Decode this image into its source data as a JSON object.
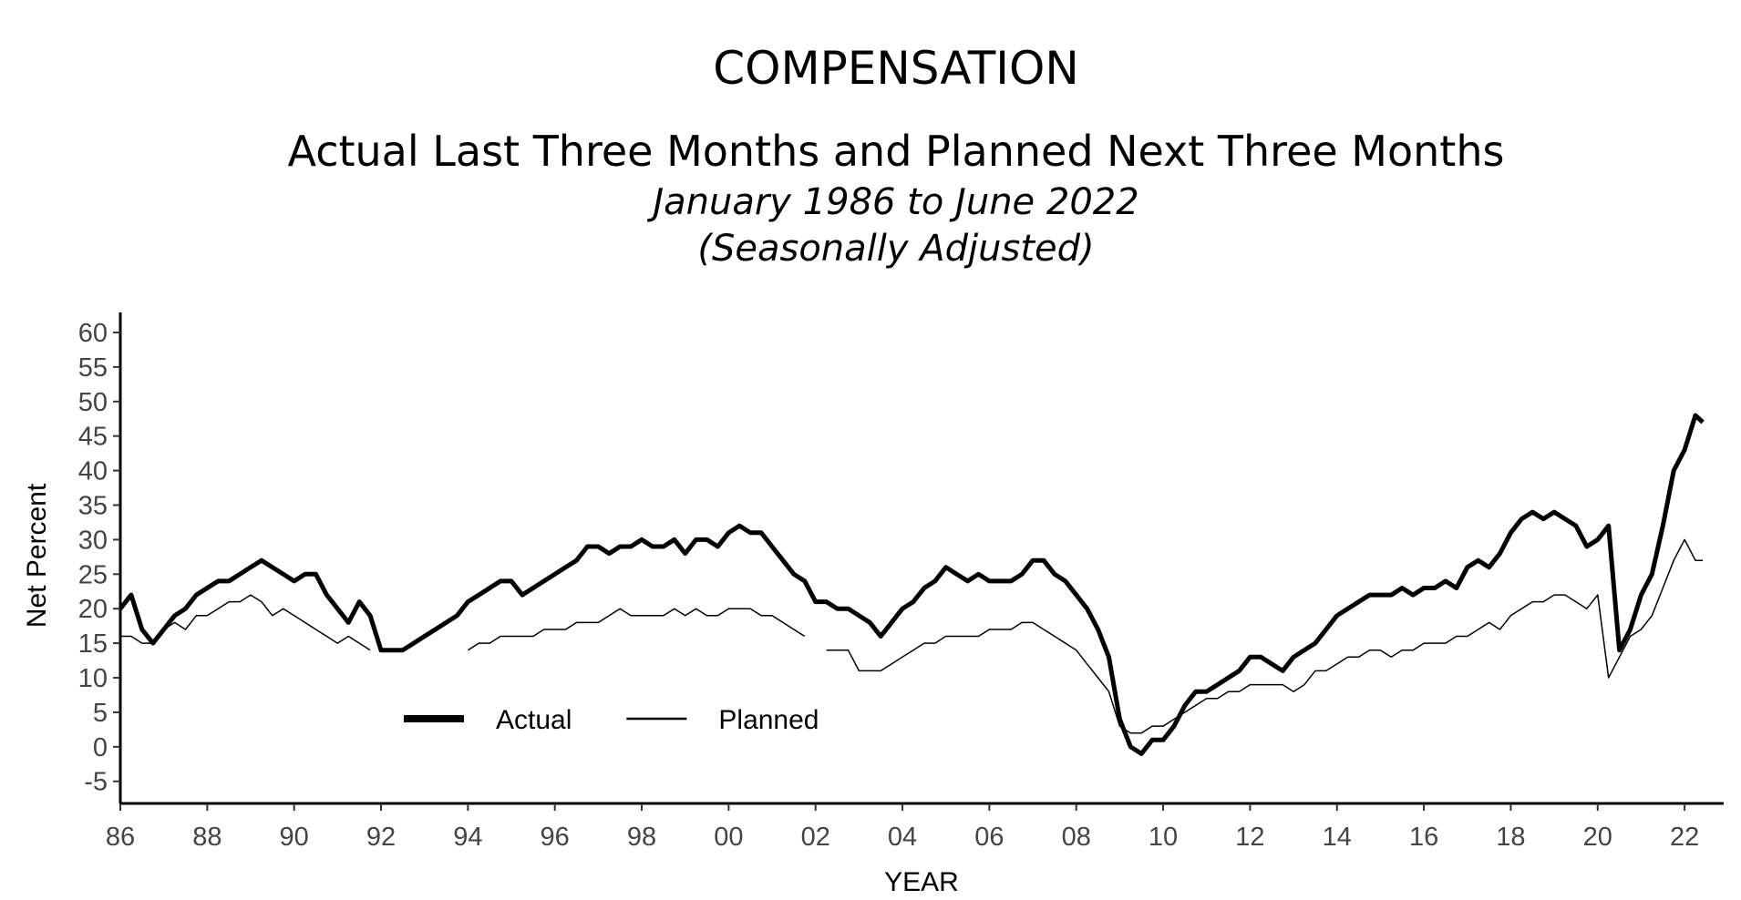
{
  "chart_data": {
    "type": "line",
    "title": "COMPENSATION",
    "subtitle": "Actual Last Three Months and Planned Next Three Months",
    "date_range": "January 1986 to June 2022",
    "note": "(Seasonally Adjusted)",
    "xlabel": "YEAR",
    "ylabel": "Net Percent",
    "legend_position": "lower left",
    "xlim": [
      1986,
      2022.9
    ],
    "ylim": [
      -8.2,
      62.9
    ],
    "yticks": [
      -5,
      0,
      5,
      10,
      15,
      20,
      25,
      30,
      35,
      40,
      45,
      50,
      55,
      60
    ],
    "xticks": [
      {
        "value": 1986,
        "label": "86"
      },
      {
        "value": 1988,
        "label": "88"
      },
      {
        "value": 1990,
        "label": "90"
      },
      {
        "value": 1992,
        "label": "92"
      },
      {
        "value": 1994,
        "label": "94"
      },
      {
        "value": 1996,
        "label": "96"
      },
      {
        "value": 1998,
        "label": "98"
      },
      {
        "value": 2000,
        "label": "00"
      },
      {
        "value": 2002,
        "label": "02"
      },
      {
        "value": 2004,
        "label": "04"
      },
      {
        "value": 2006,
        "label": "06"
      },
      {
        "value": 2008,
        "label": "08"
      },
      {
        "value": 2010,
        "label": "10"
      },
      {
        "value": 2012,
        "label": "12"
      },
      {
        "value": 2014,
        "label": "14"
      },
      {
        "value": 2016,
        "label": "16"
      },
      {
        "value": 2018,
        "label": "18"
      },
      {
        "value": 2020,
        "label": "20"
      },
      {
        "value": 2022,
        "label": "22"
      }
    ],
    "x": [
      1986,
      1986.25,
      1986.5,
      1986.75,
      1987,
      1987.25,
      1987.5,
      1987.75,
      1988,
      1988.25,
      1988.5,
      1988.75,
      1989,
      1989.25,
      1989.5,
      1989.75,
      1990,
      1990.25,
      1990.5,
      1990.75,
      1991,
      1991.25,
      1991.5,
      1991.75,
      1992,
      1992.25,
      1992.5,
      1992.75,
      1993,
      1993.25,
      1993.5,
      1993.75,
      1994,
      1994.25,
      1994.5,
      1994.75,
      1995,
      1995.25,
      1995.5,
      1995.75,
      1996,
      1996.25,
      1996.5,
      1996.75,
      1997,
      1997.25,
      1997.5,
      1997.75,
      1998,
      1998.25,
      1998.5,
      1998.75,
      1999,
      1999.25,
      1999.5,
      1999.75,
      2000,
      2000.25,
      2000.5,
      2000.75,
      2001,
      2001.25,
      2001.5,
      2001.75,
      2002,
      2002.25,
      2002.5,
      2002.75,
      2003,
      2003.25,
      2003.5,
      2003.75,
      2004,
      2004.25,
      2004.5,
      2004.75,
      2005,
      2005.25,
      2005.5,
      2005.75,
      2006,
      2006.25,
      2006.5,
      2006.75,
      2007,
      2007.25,
      2007.5,
      2007.75,
      2008,
      2008.25,
      2008.5,
      2008.75,
      2009,
      2009.25,
      2009.5,
      2009.75,
      2010,
      2010.25,
      2010.5,
      2010.75,
      2011,
      2011.25,
      2011.5,
      2011.75,
      2012,
      2012.25,
      2012.5,
      2012.75,
      2013,
      2013.25,
      2013.5,
      2013.75,
      2014,
      2014.25,
      2014.5,
      2014.75,
      2015,
      2015.25,
      2015.5,
      2015.75,
      2016,
      2016.25,
      2016.5,
      2016.75,
      2017,
      2017.25,
      2017.5,
      2017.75,
      2018,
      2018.25,
      2018.5,
      2018.75,
      2019,
      2019.25,
      2019.5,
      2019.75,
      2020,
      2020.25,
      2020.5,
      2020.75,
      2021,
      2021.25,
      2021.5,
      2021.75,
      2022,
      2022.25,
      2022.42
    ],
    "series": [
      {
        "name": "Actual",
        "color": "#000000",
        "values": [
          20,
          22,
          17,
          15,
          17,
          19,
          20,
          22,
          23,
          24,
          24,
          25,
          26,
          27,
          26,
          25,
          24,
          25,
          25,
          22,
          20,
          18,
          21,
          19,
          14,
          14,
          14,
          15,
          16,
          17,
          18,
          19,
          21,
          22,
          23,
          24,
          24,
          22,
          23,
          24,
          25,
          26,
          27,
          29,
          29,
          28,
          29,
          29,
          30,
          29,
          29,
          30,
          28,
          30,
          30,
          29,
          31,
          32,
          31,
          31,
          29,
          27,
          25,
          24,
          21,
          21,
          20,
          20,
          19,
          18,
          16,
          18,
          20,
          21,
          23,
          24,
          26,
          25,
          24,
          25,
          24,
          24,
          24,
          25,
          27,
          27,
          25,
          24,
          22,
          20,
          17,
          13,
          4,
          0,
          -1,
          1,
          1,
          3,
          6,
          8,
          8,
          9,
          10,
          11,
          13,
          13,
          12,
          11,
          13,
          14,
          15,
          17,
          19,
          20,
          21,
          22,
          22,
          22,
          23,
          22,
          23,
          23,
          24,
          23,
          26,
          27,
          26,
          28,
          31,
          33,
          34,
          33,
          34,
          33,
          32,
          29,
          30,
          32,
          14,
          17,
          22,
          25,
          32,
          40,
          43,
          48,
          47
        ]
      },
      {
        "name": "Planned",
        "color": "#000000",
        "values": [
          16,
          16,
          15,
          15,
          17,
          18,
          17,
          19,
          19,
          20,
          21,
          21,
          22,
          21,
          19,
          20,
          19,
          18,
          17,
          16,
          15,
          16,
          15,
          14,
          null,
          null,
          null,
          null,
          null,
          null,
          null,
          null,
          14,
          15,
          15,
          16,
          16,
          16,
          16,
          17,
          17,
          17,
          18,
          18,
          18,
          19,
          20,
          19,
          19,
          19,
          19,
          20,
          19,
          20,
          19,
          19,
          20,
          20,
          20,
          19,
          19,
          18,
          17,
          16,
          null,
          14,
          14,
          14,
          11,
          11,
          11,
          12,
          13,
          14,
          15,
          15,
          16,
          16,
          16,
          16,
          17,
          17,
          17,
          18,
          18,
          17,
          16,
          15,
          14,
          12,
          10,
          8,
          3,
          2,
          2,
          3,
          3,
          4,
          5,
          6,
          7,
          7,
          8,
          8,
          9,
          9,
          9,
          9,
          8,
          9,
          11,
          11,
          12,
          13,
          13,
          14,
          14,
          13,
          14,
          14,
          15,
          15,
          15,
          16,
          16,
          17,
          18,
          17,
          19,
          20,
          21,
          21,
          22,
          22,
          21,
          20,
          22,
          10,
          13,
          16,
          17,
          19,
          23,
          27,
          30,
          27,
          27
        ]
      }
    ]
  }
}
